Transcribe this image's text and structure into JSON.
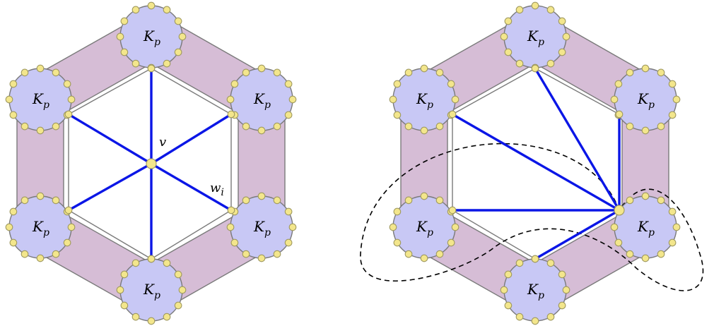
{
  "colors": {
    "band_fill": "#d6bdd6",
    "band_stroke": "#7a7a7a",
    "clique_fill": "#c8c8f5",
    "clique_stroke": "#7a7a7a",
    "vertex_fill": "#f3e68c",
    "vertex_stroke": "#a09a60",
    "edge_color": "#0b16e6",
    "dashed_color": "#000000"
  },
  "clique_label": {
    "main": "K",
    "sub": "p"
  },
  "left_panel": {
    "center_label": "v",
    "edge_label_main": "w",
    "edge_label_sub": "i"
  },
  "right_panel": {}
}
